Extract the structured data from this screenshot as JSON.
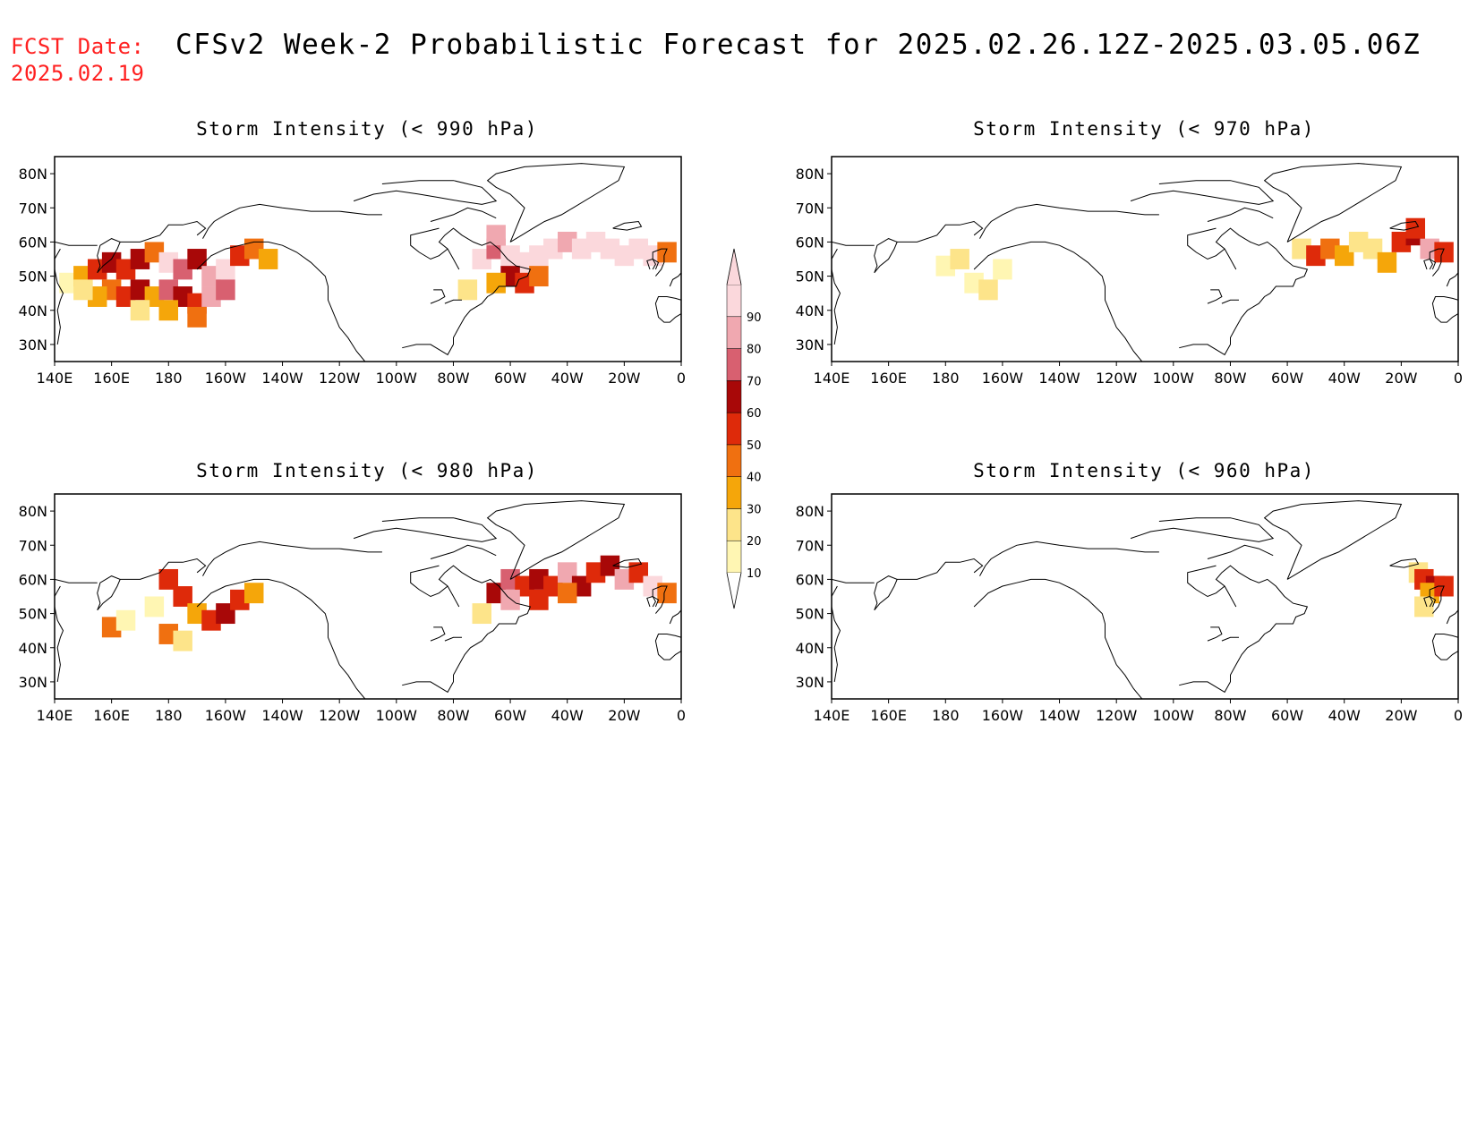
{
  "header": {
    "fcst_label": "FCST Date:",
    "fcst_date": "2025.02.19",
    "title": "CFSv2 Week-2 Probabilistic Forecast for 2025.02.26.12Z-2025.03.05.06Z"
  },
  "panels": [
    {
      "title": "Storm Intensity (< 990 hPa)"
    },
    {
      "title": "Storm Intensity (< 970 hPa)"
    },
    {
      "title": "Storm Intensity (< 980 hPa)"
    },
    {
      "title": "Storm Intensity (< 960 hPa)"
    }
  ],
  "axes": {
    "lon_labels": [
      "140E",
      "160E",
      "180",
      "160W",
      "140W",
      "120W",
      "100W",
      "80W",
      "60W",
      "40W",
      "20W",
      "0"
    ],
    "lat_labels": [
      "80N",
      "70N",
      "60N",
      "50N",
      "40N",
      "30N"
    ]
  },
  "colorbar": {
    "levels": [
      "10",
      "20",
      "30",
      "40",
      "50",
      "60",
      "70",
      "80",
      "90"
    ],
    "colors": [
      "#fff6b3",
      "#fde48a",
      "#f5a60a",
      "#f07010",
      "#de2a0a",
      "#a80808",
      "#d86070",
      "#f0a8b0",
      "#fbd8dc"
    ]
  },
  "map_data": {
    "projection": "cylindrical equidistant",
    "lon_range": [
      140,
      360
    ],
    "lat_range": [
      25,
      85
    ],
    "panels": [
      {
        "threshold_hPa": 990,
        "cells": [
          [
            145,
            48,
            "#fff6b3"
          ],
          [
            150,
            50,
            "#f5a60a"
          ],
          [
            155,
            52,
            "#de2a0a"
          ],
          [
            160,
            54,
            "#a80808"
          ],
          [
            165,
            52,
            "#de2a0a"
          ],
          [
            170,
            55,
            "#a80808"
          ],
          [
            175,
            57,
            "#f07010"
          ],
          [
            180,
            54,
            "#fbd8dc"
          ],
          [
            185,
            52,
            "#d86070"
          ],
          [
            190,
            55,
            "#a80808"
          ],
          [
            195,
            50,
            "#f0a8b0"
          ],
          [
            200,
            52,
            "#fbd8dc"
          ],
          [
            205,
            56,
            "#de2a0a"
          ],
          [
            210,
            58,
            "#f07010"
          ],
          [
            215,
            55,
            "#f5a60a"
          ],
          [
            160,
            46,
            "#f07010"
          ],
          [
            165,
            44,
            "#de2a0a"
          ],
          [
            170,
            46,
            "#a80808"
          ],
          [
            175,
            44,
            "#f5a60a"
          ],
          [
            180,
            46,
            "#d86070"
          ],
          [
            185,
            44,
            "#a80808"
          ],
          [
            190,
            42,
            "#de2a0a"
          ],
          [
            195,
            44,
            "#f0a8b0"
          ],
          [
            200,
            46,
            "#d86070"
          ],
          [
            170,
            40,
            "#fde48a"
          ],
          [
            180,
            40,
            "#f5a60a"
          ],
          [
            190,
            38,
            "#f07010"
          ],
          [
            155,
            44,
            "#f5a60a"
          ],
          [
            150,
            46,
            "#fde48a"
          ],
          [
            290,
            55,
            "#fbd8dc"
          ],
          [
            295,
            58,
            "#d86070"
          ],
          [
            300,
            56,
            "#fbd8dc"
          ],
          [
            305,
            54,
            "#fbd8dc"
          ],
          [
            310,
            56,
            "#fbd8dc"
          ],
          [
            315,
            58,
            "#fbd8dc"
          ],
          [
            320,
            60,
            "#f0a8b0"
          ],
          [
            325,
            58,
            "#fbd8dc"
          ],
          [
            330,
            60,
            "#fbd8dc"
          ],
          [
            335,
            58,
            "#fbd8dc"
          ],
          [
            340,
            56,
            "#fbd8dc"
          ],
          [
            345,
            58,
            "#fbd8dc"
          ],
          [
            350,
            56,
            "#fbd8dc"
          ],
          [
            355,
            57,
            "#f07010"
          ],
          [
            300,
            50,
            "#a80808"
          ],
          [
            305,
            48,
            "#de2a0a"
          ],
          [
            310,
            50,
            "#f07010"
          ],
          [
            295,
            48,
            "#f5a60a"
          ],
          [
            285,
            46,
            "#fde48a"
          ],
          [
            295,
            62,
            "#f0a8b0"
          ]
        ]
      },
      {
        "threshold_hPa": 970,
        "cells": [
          [
            180,
            53,
            "#fff6b3"
          ],
          [
            185,
            55,
            "#fde48a"
          ],
          [
            190,
            48,
            "#fff6b3"
          ],
          [
            195,
            46,
            "#fde48a"
          ],
          [
            200,
            52,
            "#fff6b3"
          ],
          [
            305,
            58,
            "#fde48a"
          ],
          [
            310,
            56,
            "#de2a0a"
          ],
          [
            315,
            58,
            "#f07010"
          ],
          [
            320,
            56,
            "#f5a60a"
          ],
          [
            325,
            60,
            "#fde48a"
          ],
          [
            330,
            58,
            "#fde48a"
          ],
          [
            335,
            54,
            "#f5a60a"
          ],
          [
            340,
            60,
            "#de2a0a"
          ],
          [
            345,
            62,
            "#a80808"
          ],
          [
            350,
            58,
            "#f0a8b0"
          ],
          [
            355,
            57,
            "#de2a0a"
          ],
          [
            345,
            64,
            "#de2a0a"
          ]
        ]
      },
      {
        "threshold_hPa": 980,
        "cells": [
          [
            160,
            46,
            "#f07010"
          ],
          [
            165,
            48,
            "#fff6b3"
          ],
          [
            175,
            52,
            "#fff6b3"
          ],
          [
            180,
            60,
            "#de2a0a"
          ],
          [
            185,
            55,
            "#de2a0a"
          ],
          [
            190,
            50,
            "#f5a60a"
          ],
          [
            195,
            48,
            "#de2a0a"
          ],
          [
            200,
            50,
            "#a80808"
          ],
          [
            205,
            54,
            "#de2a0a"
          ],
          [
            210,
            56,
            "#f5a60a"
          ],
          [
            180,
            44,
            "#f07010"
          ],
          [
            185,
            42,
            "#fde48a"
          ],
          [
            290,
            50,
            "#fde48a"
          ],
          [
            295,
            56,
            "#a80808"
          ],
          [
            300,
            60,
            "#d86070"
          ],
          [
            305,
            58,
            "#de2a0a"
          ],
          [
            310,
            60,
            "#a80808"
          ],
          [
            315,
            58,
            "#de2a0a"
          ],
          [
            320,
            62,
            "#f0a8b0"
          ],
          [
            325,
            58,
            "#a80808"
          ],
          [
            330,
            62,
            "#de2a0a"
          ],
          [
            335,
            64,
            "#a80808"
          ],
          [
            340,
            60,
            "#f0a8b0"
          ],
          [
            345,
            62,
            "#de2a0a"
          ],
          [
            350,
            58,
            "#fbd8dc"
          ],
          [
            355,
            56,
            "#f07010"
          ],
          [
            300,
            54,
            "#f0a8b0"
          ],
          [
            310,
            54,
            "#de2a0a"
          ],
          [
            320,
            56,
            "#f07010"
          ]
        ]
      },
      {
        "threshold_hPa": 960,
        "cells": [
          [
            346,
            62,
            "#fde48a"
          ],
          [
            348,
            60,
            "#de2a0a"
          ],
          [
            352,
            58,
            "#a80808"
          ],
          [
            350,
            56,
            "#f5a60a"
          ],
          [
            355,
            58,
            "#de2a0a"
          ],
          [
            348,
            52,
            "#fde48a"
          ]
        ]
      }
    ]
  }
}
